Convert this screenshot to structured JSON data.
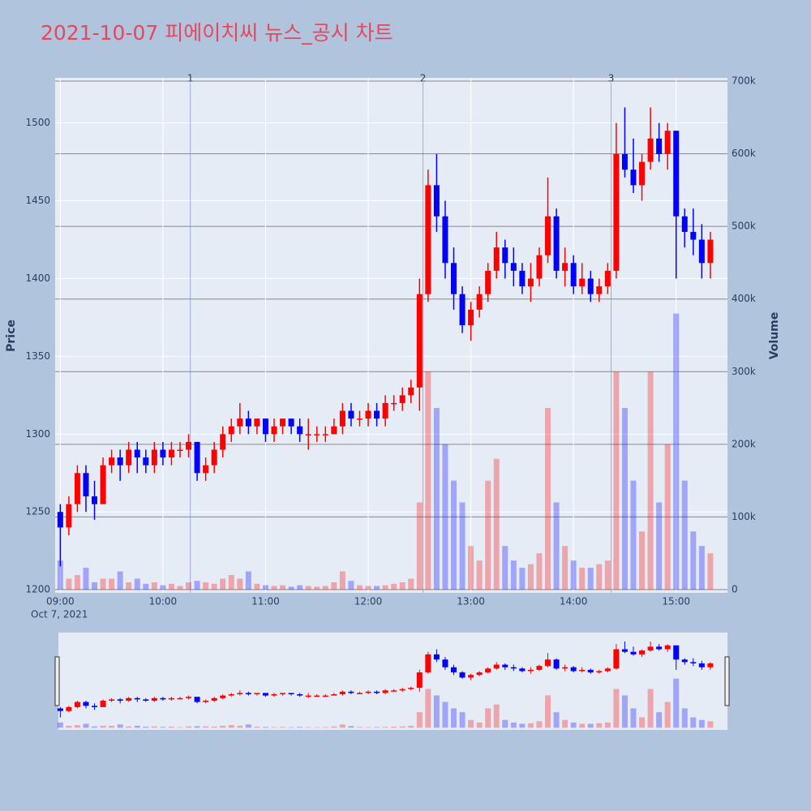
{
  "chart_data": {
    "type": "candlestick",
    "title": "2021-10-07 피에이치씨 뉴스_공시 차트",
    "y_label": "Price",
    "y2_label": "Volume",
    "up_color": "#ff0000",
    "down_color": "#0000ff",
    "x": [
      "09:00",
      "09:05",
      "09:10",
      "09:15",
      "09:20",
      "09:25",
      "09:30",
      "09:35",
      "09:40",
      "09:45",
      "09:50",
      "09:55",
      "10:00",
      "10:05",
      "10:10",
      "10:15",
      "10:20",
      "10:25",
      "10:30",
      "10:35",
      "10:40",
      "10:45",
      "10:50",
      "10:55",
      "11:00",
      "11:05",
      "11:10",
      "11:15",
      "11:20",
      "11:25",
      "11:30",
      "11:35",
      "11:40",
      "11:45",
      "11:50",
      "11:55",
      "12:00",
      "12:05",
      "12:10",
      "12:15",
      "12:20",
      "12:25",
      "12:30",
      "12:35",
      "12:40",
      "12:45",
      "12:50",
      "12:55",
      "13:00",
      "13:05",
      "13:10",
      "13:15",
      "13:20",
      "13:25",
      "13:30",
      "13:35",
      "13:40",
      "13:45",
      "13:50",
      "13:55",
      "14:00",
      "14:05",
      "14:10",
      "14:15",
      "14:20",
      "14:25",
      "14:30",
      "14:35",
      "14:40",
      "14:45",
      "14:50",
      "14:55",
      "15:00",
      "15:05",
      "15:10",
      "15:15",
      "15:20"
    ],
    "open": [
      1250,
      1240,
      1255,
      1275,
      1260,
      1255,
      1280,
      1285,
      1280,
      1290,
      1285,
      1280,
      1290,
      1285,
      1290,
      1290,
      1295,
      1275,
      1280,
      1290,
      1300,
      1305,
      1310,
      1305,
      1310,
      1300,
      1305,
      1310,
      1305,
      1300,
      1300,
      1300,
      1300,
      1305,
      1315,
      1310,
      1310,
      1315,
      1310,
      1320,
      1320,
      1325,
      1330,
      1390,
      1460,
      1440,
      1410,
      1390,
      1370,
      1380,
      1390,
      1405,
      1420,
      1410,
      1405,
      1395,
      1400,
      1415,
      1440,
      1405,
      1410,
      1395,
      1400,
      1390,
      1395,
      1405,
      1480,
      1470,
      1460,
      1475,
      1490,
      1480,
      1495,
      1440,
      1430,
      1425,
      1410
    ],
    "high": [
      1255,
      1260,
      1280,
      1280,
      1270,
      1285,
      1290,
      1290,
      1295,
      1295,
      1290,
      1295,
      1295,
      1295,
      1295,
      1300,
      1295,
      1285,
      1295,
      1305,
      1310,
      1320,
      1315,
      1310,
      1310,
      1310,
      1310,
      1310,
      1310,
      1310,
      1305,
      1305,
      1310,
      1320,
      1320,
      1315,
      1320,
      1320,
      1325,
      1325,
      1330,
      1335,
      1400,
      1470,
      1480,
      1450,
      1420,
      1395,
      1385,
      1395,
      1410,
      1430,
      1425,
      1420,
      1410,
      1410,
      1420,
      1465,
      1445,
      1420,
      1415,
      1410,
      1405,
      1400,
      1410,
      1500,
      1510,
      1490,
      1480,
      1510,
      1500,
      1500,
      1495,
      1445,
      1445,
      1435,
      1430
    ],
    "low": [
      1215,
      1235,
      1250,
      1250,
      1245,
      1255,
      1275,
      1270,
      1275,
      1275,
      1275,
      1275,
      1280,
      1280,
      1285,
      1285,
      1270,
      1270,
      1275,
      1285,
      1295,
      1300,
      1300,
      1300,
      1295,
      1295,
      1300,
      1300,
      1295,
      1290,
      1295,
      1295,
      1300,
      1300,
      1305,
      1305,
      1305,
      1305,
      1305,
      1315,
      1315,
      1320,
      1315,
      1385,
      1430,
      1400,
      1380,
      1365,
      1360,
      1375,
      1385,
      1400,
      1400,
      1395,
      1390,
      1385,
      1395,
      1410,
      1400,
      1395,
      1390,
      1390,
      1385,
      1385,
      1390,
      1400,
      1465,
      1455,
      1450,
      1470,
      1475,
      1470,
      1400,
      1420,
      1415,
      1400,
      1400
    ],
    "close": [
      1240,
      1255,
      1275,
      1260,
      1255,
      1280,
      1285,
      1280,
      1290,
      1285,
      1280,
      1290,
      1285,
      1290,
      1290,
      1295,
      1275,
      1280,
      1290,
      1300,
      1305,
      1310,
      1305,
      1310,
      1300,
      1305,
      1310,
      1305,
      1300,
      1300,
      1300,
      1300,
      1305,
      1315,
      1310,
      1310,
      1315,
      1310,
      1320,
      1320,
      1325,
      1330,
      1390,
      1460,
      1440,
      1410,
      1390,
      1370,
      1380,
      1390,
      1405,
      1420,
      1410,
      1405,
      1395,
      1400,
      1415,
      1440,
      1405,
      1410,
      1395,
      1400,
      1390,
      1395,
      1405,
      1480,
      1470,
      1460,
      1475,
      1490,
      1480,
      1495,
      1440,
      1430,
      1425,
      1410,
      1425
    ],
    "volume": [
      40000,
      15000,
      20000,
      30000,
      10000,
      15000,
      15000,
      25000,
      10000,
      15000,
      8000,
      10000,
      6000,
      8000,
      5000,
      10000,
      12000,
      10000,
      8000,
      15000,
      20000,
      15000,
      25000,
      8000,
      6000,
      5000,
      6000,
      4000,
      6000,
      5000,
      4000,
      5000,
      10000,
      25000,
      12000,
      6000,
      5000,
      5000,
      6000,
      8000,
      10000,
      15000,
      120000,
      300000,
      250000,
      200000,
      150000,
      120000,
      60000,
      40000,
      150000,
      180000,
      60000,
      40000,
      30000,
      35000,
      50000,
      250000,
      120000,
      60000,
      40000,
      30000,
      30000,
      35000,
      40000,
      300000,
      250000,
      150000,
      80000,
      300000,
      120000,
      200000,
      380000,
      150000,
      80000,
      60000,
      50000
    ],
    "xlim": [
      "08:57",
      "15:30"
    ],
    "xticks": [
      "09:00",
      "10:00",
      "11:00",
      "12:00",
      "13:00",
      "14:00",
      "15:00"
    ],
    "x_date_label": "Oct 7, 2021",
    "ylim": [
      1198,
      1529
    ],
    "yticks": [
      1200,
      1250,
      1300,
      1350,
      1400,
      1450,
      1500
    ],
    "y2lim": [
      -4500,
      704500
    ],
    "y2ticks": [
      0,
      {
        "value": 100000,
        "label": "100k"
      },
      {
        "value": 200000,
        "label": "200k"
      },
      {
        "value": 300000,
        "label": "300k"
      },
      {
        "value": 400000,
        "label": "400k"
      },
      {
        "value": 500000,
        "label": "500k"
      },
      {
        "value": 600000,
        "label": "600k"
      },
      {
        "value": 700000,
        "label": "700k"
      }
    ],
    "annotations": [
      {
        "x": "10:16",
        "label": "1"
      },
      {
        "x": "12:32",
        "label": "2"
      },
      {
        "x": "14:22",
        "label": "3"
      }
    ],
    "grid": true
  }
}
